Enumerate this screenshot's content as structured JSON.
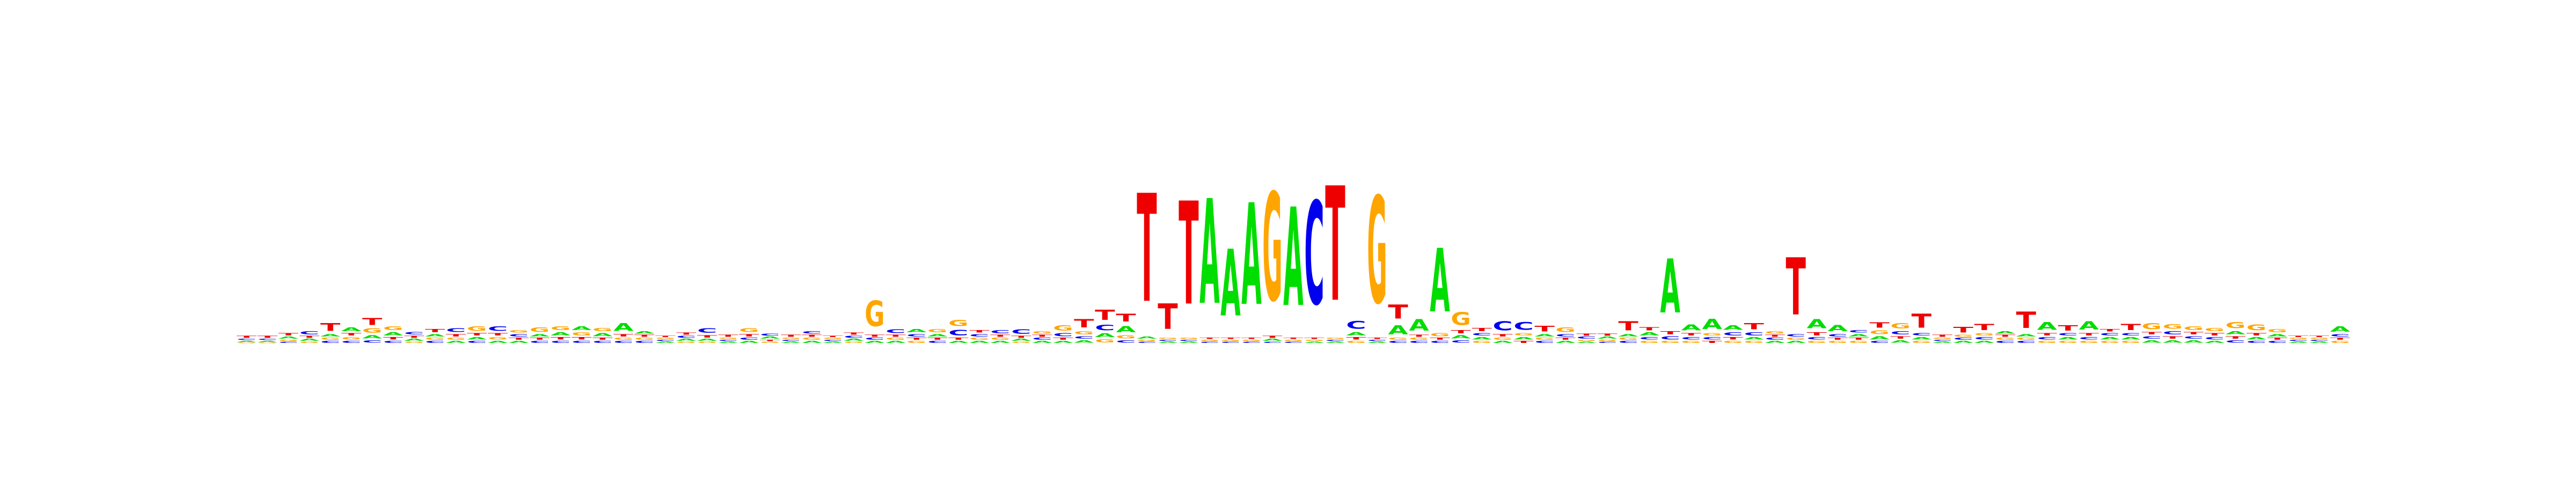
{
  "colors": {
    "A": "#00dd00",
    "C": "#0000ee",
    "G": "#ffa500",
    "T": "#ee0000"
  },
  "chart_data": {
    "type": "sequence_logo",
    "alphabet": [
      "A",
      "C",
      "G",
      "T"
    ],
    "height_units": "bits",
    "max_bits": 2,
    "positions": [
      {
        "A": 0.02,
        "C": 0.02,
        "G": 0.01,
        "T": 0.03
      },
      {
        "A": 0.02,
        "C": 0.02,
        "G": 0.01,
        "T": 0.03
      },
      {
        "A": 0.03,
        "C": 0.02,
        "G": 0.02,
        "T": 0.04
      },
      {
        "A": 0.03,
        "C": 0.05,
        "G": 0.02,
        "T": 0.03
      },
      {
        "A": 0.04,
        "C": 0.03,
        "G": 0.03,
        "T": 0.12
      },
      {
        "A": 0.06,
        "C": 0.03,
        "G": 0.04,
        "T": 0.04
      },
      {
        "A": 0.05,
        "C": 0.04,
        "G": 0.07,
        "T": 0.11
      },
      {
        "A": 0.05,
        "C": 0.03,
        "G": 0.06,
        "T": 0.04
      },
      {
        "A": 0.03,
        "C": 0.04,
        "G": 0.02,
        "T": 0.03
      },
      {
        "A": 0.04,
        "C": 0.03,
        "G": 0.03,
        "T": 0.05
      },
      {
        "A": 0.03,
        "C": 0.06,
        "G": 0.03,
        "T": 0.04
      },
      {
        "A": 0.04,
        "C": 0.03,
        "G": 0.07,
        "T": 0.04
      },
      {
        "A": 0.03,
        "C": 0.07,
        "G": 0.04,
        "T": 0.04
      },
      {
        "A": 0.03,
        "C": 0.04,
        "G": 0.04,
        "T": 0.03
      },
      {
        "A": 0.04,
        "C": 0.03,
        "G": 0.07,
        "T": 0.03
      },
      {
        "A": 0.05,
        "C": 0.03,
        "G": 0.06,
        "T": 0.04
      },
      {
        "A": 0.06,
        "C": 0.03,
        "G": 0.05,
        "T": 0.04
      },
      {
        "A": 0.05,
        "C": 0.03,
        "G": 0.05,
        "T": 0.03
      },
      {
        "A": 0.12,
        "C": 0.03,
        "G": 0.03,
        "T": 0.04
      },
      {
        "A": 0.04,
        "C": 0.03,
        "G": 0.03,
        "T": 0.03
      },
      {
        "A": 0.02,
        "C": 0.02,
        "G": 0.02,
        "T": 0.02
      },
      {
        "A": 0.03,
        "C": 0.03,
        "G": 0.02,
        "T": 0.03
      },
      {
        "A": 0.03,
        "C": 0.07,
        "G": 0.02,
        "T": 0.04
      },
      {
        "A": 0.02,
        "C": 0.02,
        "G": 0.02,
        "T": 0.03
      },
      {
        "A": 0.03,
        "C": 0.03,
        "G": 0.06,
        "T": 0.04
      },
      {
        "A": 0.03,
        "C": 0.03,
        "G": 0.02,
        "T": 0.02
      },
      {
        "A": 0.02,
        "C": 0.02,
        "G": 0.02,
        "T": 0.03
      },
      {
        "A": 0.03,
        "C": 0.04,
        "G": 0.03,
        "T": 0.03
      },
      {
        "A": 0.02,
        "C": 0.02,
        "G": 0.02,
        "T": 0.02
      },
      {
        "A": 0.03,
        "C": 0.03,
        "G": 0.02,
        "T": 0.03
      },
      {
        "A": 0.03,
        "C": 0.03,
        "G": 0.4,
        "T": 0.03
      },
      {
        "A": 0.03,
        "C": 0.06,
        "G": 0.03,
        "T": 0.03
      },
      {
        "A": 0.05,
        "C": 0.04,
        "G": 0.03,
        "T": 0.03
      },
      {
        "A": 0.04,
        "C": 0.03,
        "G": 0.05,
        "T": 0.03
      },
      {
        "A": 0.03,
        "C": 0.09,
        "G": 0.1,
        "T": 0.03
      },
      {
        "A": 0.03,
        "C": 0.04,
        "G": 0.03,
        "T": 0.04
      },
      {
        "A": 0.03,
        "C": 0.05,
        "G": 0.03,
        "T": 0.03
      },
      {
        "A": 0.03,
        "C": 0.07,
        "G": 0.02,
        "T": 0.03
      },
      {
        "A": 0.03,
        "C": 0.03,
        "G": 0.04,
        "T": 0.03
      },
      {
        "A": 0.03,
        "C": 0.05,
        "G": 0.08,
        "T": 0.03
      },
      {
        "A": 0.04,
        "C": 0.04,
        "G": 0.05,
        "T": 0.13
      },
      {
        "A": 0.06,
        "C": 0.09,
        "G": 0.05,
        "T": 0.16
      },
      {
        "A": 0.1,
        "C": 0.04,
        "G": 0.05,
        "T": 0.12
      },
      {
        "A": 0.03,
        "C": 0.02,
        "G": 0.02,
        "T": 1.7
      },
      {
        "A": 0.02,
        "C": 0.02,
        "G": 0.02,
        "T": 0.4
      },
      {
        "A": 0.02,
        "C": 0.02,
        "G": 0.02,
        "T": 1.62
      },
      {
        "A": 1.65,
        "C": 0.02,
        "G": 0.02,
        "T": 0.02
      },
      {
        "A": 1.05,
        "C": 0.02,
        "G": 0.02,
        "T": 0.02
      },
      {
        "A": 1.6,
        "C": 0.02,
        "G": 0.02,
        "T": 0.02
      },
      {
        "A": 0.03,
        "C": 0.02,
        "G": 1.7,
        "T": 0.03
      },
      {
        "A": 1.55,
        "C": 0.02,
        "G": 0.02,
        "T": 0.02
      },
      {
        "A": 0.02,
        "C": 1.62,
        "G": 0.02,
        "T": 0.02
      },
      {
        "A": 0.02,
        "C": 0.02,
        "G": 0.02,
        "T": 1.8
      },
      {
        "A": 0.05,
        "C": 0.12,
        "G": 0.03,
        "T": 0.04
      },
      {
        "A": 0.02,
        "C": 0.02,
        "G": 1.68,
        "T": 0.02
      },
      {
        "A": 0.14,
        "C": 0.03,
        "G": 0.03,
        "T": 0.22
      },
      {
        "A": 0.18,
        "C": 0.03,
        "G": 0.03,
        "T": 0.03
      },
      {
        "A": 1.0,
        "C": 0.03,
        "G": 0.05,
        "T": 0.03
      },
      {
        "A": 0.05,
        "C": 0.04,
        "G": 0.2,
        "T": 0.05
      },
      {
        "A": 0.04,
        "C": 0.04,
        "G": 0.03,
        "T": 0.05
      },
      {
        "A": 0.03,
        "C": 0.14,
        "G": 0.03,
        "T": 0.04
      },
      {
        "A": 0.04,
        "C": 0.12,
        "G": 0.04,
        "T": 0.03
      },
      {
        "A": 0.04,
        "C": 0.03,
        "G": 0.03,
        "T": 0.09
      },
      {
        "A": 0.03,
        "C": 0.04,
        "G": 0.07,
        "T": 0.03
      },
      {
        "A": 0.02,
        "C": 0.03,
        "G": 0.02,
        "T": 0.03
      },
      {
        "A": 0.03,
        "C": 0.02,
        "G": 0.02,
        "T": 0.03
      },
      {
        "A": 0.04,
        "C": 0.03,
        "G": 0.03,
        "T": 0.14
      },
      {
        "A": 0.05,
        "C": 0.04,
        "G": 0.03,
        "T": 0.05
      },
      {
        "A": 0.85,
        "C": 0.05,
        "G": 0.03,
        "T": 0.05
      },
      {
        "A": 0.09,
        "C": 0.04,
        "G": 0.03,
        "T": 0.04
      },
      {
        "A": 0.16,
        "C": 0.04,
        "G": 0.04,
        "T": 0.03
      },
      {
        "A": 0.07,
        "C": 0.05,
        "G": 0.03,
        "T": 0.04
      },
      {
        "A": 0.04,
        "C": 0.05,
        "G": 0.03,
        "T": 0.1
      },
      {
        "A": 0.03,
        "C": 0.03,
        "G": 0.04,
        "T": 0.03
      },
      {
        "A": 0.03,
        "C": 0.04,
        "G": 0.03,
        "T": 0.9
      },
      {
        "A": 0.14,
        "C": 0.04,
        "G": 0.03,
        "T": 0.05
      },
      {
        "A": 0.1,
        "C": 0.04,
        "G": 0.03,
        "T": 0.03
      },
      {
        "A": 0.04,
        "C": 0.04,
        "G": 0.03,
        "T": 0.03
      },
      {
        "A": 0.05,
        "C": 0.03,
        "G": 0.06,
        "T": 0.08
      },
      {
        "A": 0.04,
        "C": 0.05,
        "G": 0.08,
        "T": 0.04
      },
      {
        "A": 0.04,
        "C": 0.04,
        "G": 0.03,
        "T": 0.22
      },
      {
        "A": 0.02,
        "C": 0.02,
        "G": 0.02,
        "T": 0.03
      },
      {
        "A": 0.03,
        "C": 0.03,
        "G": 0.03,
        "T": 0.09
      },
      {
        "A": 0.03,
        "C": 0.04,
        "G": 0.04,
        "T": 0.1
      },
      {
        "A": 0.04,
        "C": 0.03,
        "G": 0.03,
        "T": 0.03
      },
      {
        "A": 0.04,
        "C": 0.03,
        "G": 0.03,
        "T": 0.26
      },
      {
        "A": 0.12,
        "C": 0.04,
        "G": 0.03,
        "T": 0.04
      },
      {
        "A": 0.04,
        "C": 0.04,
        "G": 0.03,
        "T": 0.08
      },
      {
        "A": 0.13,
        "C": 0.04,
        "G": 0.03,
        "T": 0.04
      },
      {
        "A": 0.04,
        "C": 0.04,
        "G": 0.03,
        "T": 0.04
      },
      {
        "A": 0.04,
        "C": 0.04,
        "G": 0.03,
        "T": 0.1
      },
      {
        "A": 0.04,
        "C": 0.04,
        "G": 0.1,
        "T": 0.04
      },
      {
        "A": 0.04,
        "C": 0.05,
        "G": 0.07,
        "T": 0.04
      },
      {
        "A": 0.04,
        "C": 0.04,
        "G": 0.06,
        "T": 0.04
      },
      {
        "A": 0.03,
        "C": 0.04,
        "G": 0.05,
        "T": 0.04
      },
      {
        "A": 0.05,
        "C": 0.04,
        "G": 0.1,
        "T": 0.04
      },
      {
        "A": 0.04,
        "C": 0.03,
        "G": 0.09,
        "T": 0.04
      },
      {
        "A": 0.04,
        "C": 0.03,
        "G": 0.05,
        "T": 0.03
      },
      {
        "A": 0.02,
        "C": 0.02,
        "G": 0.02,
        "T": 0.02
      },
      {
        "A": 0.02,
        "C": 0.02,
        "G": 0.02,
        "T": 0.02
      },
      {
        "A": 0.08,
        "C": 0.04,
        "G": 0.03,
        "T": 0.03
      }
    ]
  }
}
